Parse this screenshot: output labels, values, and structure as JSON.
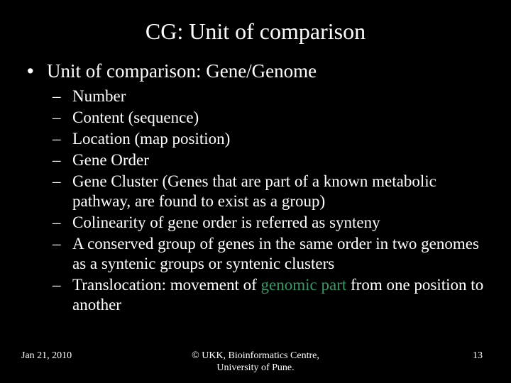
{
  "colors": {
    "background": "#000000",
    "text": "#ffffff",
    "accent": "#339966"
  },
  "typography": {
    "family": "Times New Roman",
    "title_size_pt": 32,
    "lvl1_size_pt": 27,
    "lvl2_size_pt": 23,
    "footer_size_pt": 14
  },
  "title": "CG: Unit of comparison",
  "bullets": {
    "lvl1": {
      "marker": "•",
      "text": "Unit of comparison: Gene/Genome"
    },
    "lvl2_marker": "–",
    "lvl2": [
      {
        "text": "Number"
      },
      {
        "text": "Content (sequence)"
      },
      {
        "text": "Location (map position)"
      },
      {
        "text": "Gene Order"
      },
      {
        "text": "Gene Cluster (Genes that are part of a known metabolic pathway, are found to exist as a group)"
      },
      {
        "text": "Colinearity of gene order is referred as synteny"
      },
      {
        "text": "A conserved group of genes in the same order in two genomes as a syntenic groups or syntenic clusters"
      },
      {
        "text_pre": "Translocation: movement of ",
        "accent": "genomic part",
        "text_post": " from one position to another"
      }
    ]
  },
  "footer": {
    "date": "Jan 21, 2010",
    "center_line1": "© UKK, Bioinformatics Centre,",
    "center_line2": "University of Pune.",
    "page": "13"
  }
}
